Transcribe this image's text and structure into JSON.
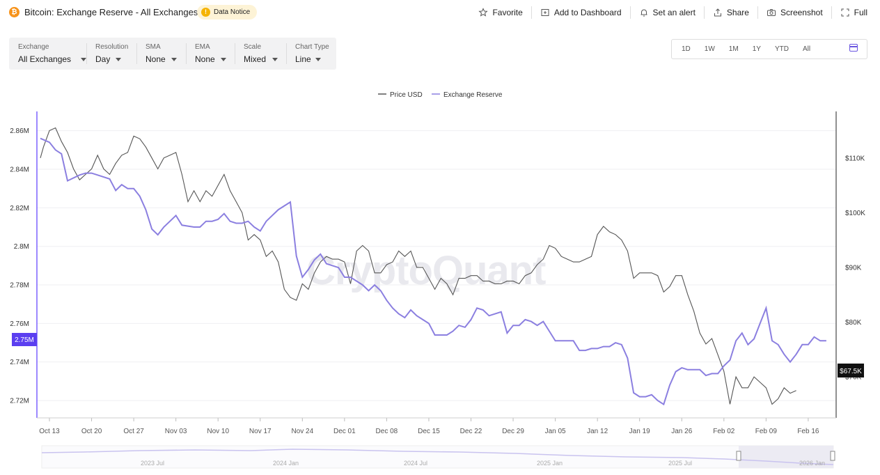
{
  "header": {
    "title": "Bitcoin: Exchange Reserve - All Exchanges",
    "notice": "Data Notice",
    "actions": [
      {
        "label": "Favorite",
        "icon": "star-icon"
      },
      {
        "label": "Add to Dashboard",
        "icon": "add-dashboard-icon"
      },
      {
        "label": "Set an alert",
        "icon": "bell-icon"
      },
      {
        "label": "Share",
        "icon": "share-icon"
      },
      {
        "label": "Screenshot",
        "icon": "camera-icon"
      },
      {
        "label": "Full",
        "icon": "fullscreen-icon"
      }
    ]
  },
  "controls": [
    {
      "label": "Exchange",
      "value": "All Exchanges"
    },
    {
      "label": "Resolution",
      "value": "Day"
    },
    {
      "label": "SMA",
      "value": "None"
    },
    {
      "label": "EMA",
      "value": "None"
    },
    {
      "label": "Scale",
      "value": "Mixed"
    },
    {
      "label": "Chart Type",
      "value": "Line"
    }
  ],
  "ranges": [
    "1D",
    "1W",
    "1M",
    "1Y",
    "YTD",
    "All"
  ],
  "watermark": "CryptoQuant",
  "chart_data": {
    "type": "line",
    "legend": [
      "Price USD",
      "Exchange Reserve"
    ],
    "legend_position": "top-center",
    "colors": {
      "price": "#555555",
      "reserve": "#8b7fe0",
      "axis_left": "#7b61ff"
    },
    "x_labels": [
      "Oct 13",
      "Oct 20",
      "Oct 27",
      "Nov 03",
      "Nov 10",
      "Nov 17",
      "Nov 24",
      "Dec 01",
      "Dec 08",
      "Dec 15",
      "Dec 22",
      "Dec 29",
      "Jan 05",
      "Jan 12",
      "Jan 19",
      "Jan 26",
      "Feb 02",
      "Feb 09",
      "Feb 16"
    ],
    "x_range_days": [
      -2,
      126
    ],
    "y_left": {
      "ticks": [
        "2.86M",
        "2.84M",
        "2.82M",
        "2.8M",
        "2.78M",
        "2.76M",
        "2.74M",
        "2.72M"
      ],
      "range": [
        2.711,
        2.87
      ],
      "unit": "M"
    },
    "y_right": {
      "ticks": [
        "$110K",
        "$100K",
        "$90K",
        "$80K",
        "$70K"
      ],
      "range": [
        62.5,
        118.5
      ],
      "unit": "K USD"
    },
    "current_reserve_label": "2.75M",
    "current_price_label": "$67.5K",
    "grid": "horizontal",
    "series": [
      {
        "name": "Exchange Reserve",
        "points": [
          [
            -1.5,
            2.856
          ],
          [
            0,
            2.854
          ],
          [
            1,
            2.85
          ],
          [
            2,
            2.848
          ],
          [
            3,
            2.834
          ],
          [
            5,
            2.837
          ],
          [
            6,
            2.838
          ],
          [
            7,
            2.838
          ],
          [
            8,
            2.837
          ],
          [
            10,
            2.835
          ],
          [
            11,
            2.829
          ],
          [
            12,
            2.832
          ],
          [
            13,
            2.83
          ],
          [
            14,
            2.83
          ],
          [
            15,
            2.826
          ],
          [
            16,
            2.819
          ],
          [
            17,
            2.809
          ],
          [
            18,
            2.806
          ],
          [
            19,
            2.81
          ],
          [
            21,
            2.816
          ],
          [
            22,
            2.811
          ],
          [
            24,
            2.81
          ],
          [
            25,
            2.81
          ],
          [
            26,
            2.813
          ],
          [
            27,
            2.813
          ],
          [
            28,
            2.814
          ],
          [
            29,
            2.817
          ],
          [
            30,
            2.813
          ],
          [
            31,
            2.812
          ],
          [
            32,
            2.812
          ],
          [
            33,
            2.813
          ],
          [
            34,
            2.81
          ],
          [
            35,
            2.808
          ],
          [
            36,
            2.813
          ],
          [
            38,
            2.819
          ],
          [
            40,
            2.823
          ],
          [
            41,
            2.795
          ],
          [
            42,
            2.784
          ],
          [
            43,
            2.788
          ],
          [
            44,
            2.793
          ],
          [
            45,
            2.796
          ],
          [
            46,
            2.791
          ],
          [
            47,
            2.79
          ],
          [
            48,
            2.789
          ],
          [
            49,
            2.784
          ],
          [
            50,
            2.784
          ],
          [
            52,
            2.78
          ],
          [
            53,
            2.777
          ],
          [
            54,
            2.78
          ],
          [
            55,
            2.777
          ],
          [
            56,
            2.772
          ],
          [
            57,
            2.768
          ],
          [
            58,
            2.765
          ],
          [
            59,
            2.763
          ],
          [
            60,
            2.767
          ],
          [
            61,
            2.764
          ],
          [
            62,
            2.762
          ],
          [
            63,
            2.76
          ],
          [
            64,
            2.754
          ],
          [
            65,
            2.754
          ],
          [
            66,
            2.754
          ],
          [
            67,
            2.756
          ],
          [
            68,
            2.759
          ],
          [
            69,
            2.758
          ],
          [
            70,
            2.762
          ],
          [
            71,
            2.768
          ],
          [
            72,
            2.767
          ],
          [
            73,
            2.764
          ],
          [
            74,
            2.765
          ],
          [
            75,
            2.766
          ],
          [
            76,
            2.755
          ],
          [
            77,
            2.759
          ],
          [
            78,
            2.759
          ],
          [
            79,
            2.762
          ],
          [
            80,
            2.761
          ],
          [
            81,
            2.759
          ],
          [
            82,
            2.761
          ],
          [
            83,
            2.756
          ],
          [
            84,
            2.751
          ],
          [
            85,
            2.751
          ],
          [
            86,
            2.751
          ],
          [
            87,
            2.751
          ],
          [
            88,
            2.746
          ],
          [
            89,
            2.746
          ],
          [
            90,
            2.747
          ],
          [
            91,
            2.747
          ],
          [
            92,
            2.748
          ],
          [
            93,
            2.748
          ],
          [
            94,
            2.75
          ],
          [
            95,
            2.749
          ],
          [
            96,
            2.742
          ],
          [
            97,
            2.724
          ],
          [
            98,
            2.722
          ],
          [
            99,
            2.722
          ],
          [
            100,
            2.723
          ],
          [
            101,
            2.72
          ],
          [
            102,
            2.718
          ],
          [
            103,
            2.728
          ],
          [
            104,
            2.735
          ],
          [
            105,
            2.737
          ],
          [
            106,
            2.736
          ],
          [
            107,
            2.736
          ],
          [
            108,
            2.736
          ],
          [
            109,
            2.733
          ],
          [
            110,
            2.734
          ],
          [
            111,
            2.734
          ],
          [
            112,
            2.738
          ],
          [
            113,
            2.741
          ],
          [
            114,
            2.751
          ],
          [
            115,
            2.755
          ],
          [
            116,
            2.749
          ],
          [
            117,
            2.752
          ],
          [
            118,
            2.76
          ],
          [
            119,
            2.768
          ],
          [
            120,
            2.751
          ],
          [
            121,
            2.749
          ],
          [
            122,
            2.744
          ],
          [
            123,
            2.74
          ],
          [
            124,
            2.744
          ],
          [
            125,
            2.749
          ],
          [
            126,
            2.749
          ],
          [
            127,
            2.753
          ],
          [
            128,
            2.751
          ],
          [
            129,
            2.751
          ]
        ]
      },
      {
        "name": "Price USD",
        "points": [
          [
            -1.5,
            110
          ],
          [
            -1,
            112
          ],
          [
            0,
            115
          ],
          [
            1,
            115.5
          ],
          [
            2,
            113
          ],
          [
            3,
            111
          ],
          [
            4,
            108
          ],
          [
            5,
            106
          ],
          [
            6,
            107
          ],
          [
            7,
            108
          ],
          [
            8,
            110.5
          ],
          [
            9,
            108
          ],
          [
            10,
            107
          ],
          [
            11,
            109
          ],
          [
            12,
            110.5
          ],
          [
            13,
            111
          ],
          [
            14,
            114
          ],
          [
            15,
            113.5
          ],
          [
            16,
            112
          ],
          [
            17,
            110
          ],
          [
            18,
            108
          ],
          [
            19,
            110
          ],
          [
            20,
            110.5
          ],
          [
            21,
            111
          ],
          [
            22,
            107
          ],
          [
            23,
            102
          ],
          [
            24,
            104
          ],
          [
            25,
            102
          ],
          [
            26,
            104
          ],
          [
            27,
            103
          ],
          [
            28,
            105
          ],
          [
            29,
            107
          ],
          [
            30,
            104
          ],
          [
            31,
            102
          ],
          [
            32,
            100
          ],
          [
            33,
            95
          ],
          [
            34,
            96
          ],
          [
            35,
            95
          ],
          [
            36,
            92
          ],
          [
            37,
            93
          ],
          [
            38,
            91
          ],
          [
            39,
            86
          ],
          [
            40,
            84.5
          ],
          [
            41,
            84
          ],
          [
            42,
            87
          ],
          [
            43,
            86
          ],
          [
            44,
            89
          ],
          [
            45,
            91
          ],
          [
            46,
            92
          ],
          [
            47,
            91.5
          ],
          [
            48,
            91.5
          ],
          [
            49,
            91
          ],
          [
            50,
            87
          ],
          [
            51,
            93
          ],
          [
            52,
            94
          ],
          [
            53,
            93
          ],
          [
            54,
            89
          ],
          [
            55,
            89
          ],
          [
            56,
            90.5
          ],
          [
            57,
            91
          ],
          [
            58,
            93
          ],
          [
            59,
            92
          ],
          [
            60,
            93
          ],
          [
            61,
            90
          ],
          [
            62,
            90
          ],
          [
            63,
            88
          ],
          [
            64,
            86
          ],
          [
            65,
            88
          ],
          [
            66,
            87
          ],
          [
            67,
            85
          ],
          [
            68,
            88
          ],
          [
            69,
            88
          ],
          [
            70,
            88.5
          ],
          [
            71,
            88.5
          ],
          [
            72,
            87.5
          ],
          [
            73,
            87.5
          ],
          [
            74,
            87
          ],
          [
            75,
            87
          ],
          [
            76,
            87.5
          ],
          [
            77,
            87.5
          ],
          [
            78,
            87
          ],
          [
            79,
            88.5
          ],
          [
            80,
            89
          ],
          [
            81,
            90.5
          ],
          [
            82,
            91.5
          ],
          [
            83,
            94
          ],
          [
            84,
            93.5
          ],
          [
            85,
            92
          ],
          [
            86,
            91.5
          ],
          [
            87,
            91
          ],
          [
            88,
            91
          ],
          [
            89,
            91.5
          ],
          [
            90,
            92
          ],
          [
            91,
            96
          ],
          [
            92,
            97.5
          ],
          [
            93,
            96.5
          ],
          [
            94,
            96
          ],
          [
            95,
            95
          ],
          [
            96,
            93
          ],
          [
            97,
            88
          ],
          [
            98,
            89
          ],
          [
            99,
            89
          ],
          [
            100,
            89
          ],
          [
            101,
            88.5
          ],
          [
            102,
            85.5
          ],
          [
            103,
            86.5
          ],
          [
            104,
            88.5
          ],
          [
            105,
            88.5
          ],
          [
            106,
            85
          ],
          [
            107,
            82
          ],
          [
            108,
            78
          ],
          [
            109,
            76
          ],
          [
            110,
            77
          ],
          [
            111,
            74
          ],
          [
            112,
            71
          ],
          [
            113,
            65
          ],
          [
            114,
            70
          ],
          [
            115,
            68
          ],
          [
            116,
            68
          ],
          [
            117,
            70
          ],
          [
            118,
            69
          ],
          [
            119,
            68
          ],
          [
            120,
            65
          ],
          [
            121,
            66
          ],
          [
            122,
            68
          ],
          [
            123,
            67
          ],
          [
            124,
            67.5
          ]
        ]
      }
    ]
  },
  "navigator": {
    "labels": [
      "2023 Jul",
      "2024 Jan",
      "2024 Jul",
      "2025 Jan",
      "2025 Jul",
      "2026 Jan"
    ]
  }
}
